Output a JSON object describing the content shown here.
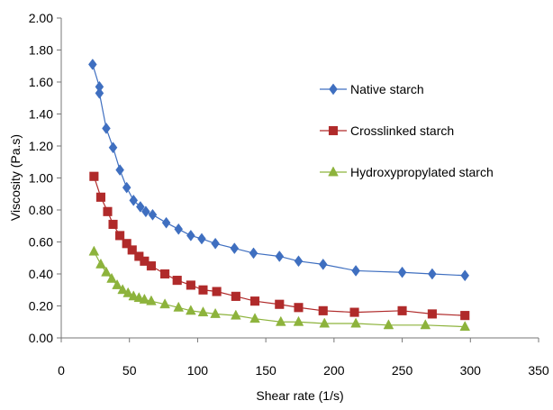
{
  "chart_data": {
    "type": "line",
    "title": "",
    "xlabel": "Shear rate (1/s)",
    "ylabel": "Viscosity (Pa.s)",
    "xlim": [
      0,
      350
    ],
    "ylim": [
      0,
      2.0
    ],
    "x_ticks": [
      "0",
      "50",
      "100",
      "150",
      "200",
      "250",
      "300",
      "350"
    ],
    "y_ticks": [
      "0.00",
      "0.20",
      "0.40",
      "0.60",
      "0.80",
      "1.00",
      "1.20",
      "1.40",
      "1.60",
      "1.80",
      "2.00"
    ],
    "grid": {
      "horizontal": false,
      "vertical": false
    },
    "legend_position": "right",
    "series": [
      {
        "name": "Native starch",
        "color": "#3f6fc0",
        "marker": "diamond",
        "x": [
          23,
          28,
          28,
          33,
          38,
          43,
          48,
          53,
          58,
          62,
          67,
          77,
          86,
          95,
          103,
          113,
          127,
          141,
          160,
          174,
          192,
          216,
          250,
          272,
          296
        ],
        "y": [
          1.71,
          1.57,
          1.53,
          1.31,
          1.19,
          1.05,
          0.94,
          0.86,
          0.82,
          0.79,
          0.77,
          0.72,
          0.68,
          0.64,
          0.62,
          0.59,
          0.56,
          0.53,
          0.51,
          0.48,
          0.46,
          0.42,
          0.41,
          0.4,
          0.39
        ]
      },
      {
        "name": "Crosslinked starch",
        "color": "#b02a2a",
        "marker": "square",
        "x": [
          24,
          29,
          34,
          38,
          43,
          48,
          52,
          57,
          61,
          66,
          76,
          85,
          95,
          104,
          114,
          128,
          142,
          160,
          174,
          192,
          215,
          250,
          272,
          296
        ],
        "y": [
          1.01,
          0.88,
          0.79,
          0.71,
          0.64,
          0.59,
          0.55,
          0.51,
          0.48,
          0.45,
          0.4,
          0.36,
          0.33,
          0.3,
          0.29,
          0.26,
          0.23,
          0.21,
          0.19,
          0.17,
          0.16,
          0.17,
          0.15,
          0.14
        ]
      },
      {
        "name": "Hydroxypropylated starch",
        "color": "#8db33c",
        "marker": "triangle",
        "x": [
          24,
          29,
          33,
          37,
          41,
          45,
          49,
          53,
          57,
          61,
          66,
          76,
          86,
          95,
          104,
          113,
          128,
          142,
          161,
          174,
          193,
          216,
          240,
          267,
          296
        ],
        "y": [
          0.54,
          0.46,
          0.41,
          0.37,
          0.33,
          0.3,
          0.28,
          0.26,
          0.25,
          0.24,
          0.23,
          0.21,
          0.19,
          0.17,
          0.16,
          0.15,
          0.14,
          0.12,
          0.1,
          0.1,
          0.09,
          0.09,
          0.08,
          0.08,
          0.07
        ]
      }
    ]
  }
}
